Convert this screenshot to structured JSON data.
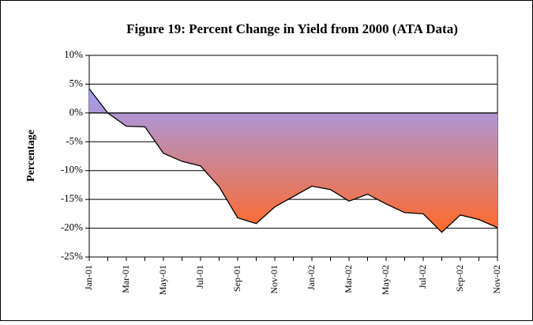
{
  "chart_data": {
    "type": "area",
    "title": "Figure 19:  Percent Change in Yield from 2000 (ATA Data)",
    "y_label": "Percentage",
    "categories": [
      "Jan-01",
      null,
      "Mar-01",
      null,
      "May-01",
      null,
      "Jul-01",
      null,
      "Sep-01",
      null,
      "Nov-01",
      null,
      "Jan-02",
      null,
      "Mar-02",
      null,
      "May-02",
      null,
      "Jul-02",
      null,
      "Sep-02",
      null,
      "Nov-02"
    ],
    "values": [
      4.2,
      0,
      -2.3,
      -2.4,
      -7.0,
      -8.4,
      -9.2,
      -12.8,
      -18.2,
      -19.2,
      -16.3,
      -14.5,
      -12.7,
      -13.3,
      -15.3,
      -14.1,
      -15.8,
      -17.3,
      -17.5,
      -20.7,
      -17.7,
      -18.5,
      -19.9
    ],
    "color": "#9e9ef6",
    "color_end": "#ff6a2a",
    "line_color": "#000000",
    "ylim": [
      -25,
      10
    ],
    "yticks": [
      {
        "value": -25,
        "label": "-25%"
      },
      {
        "value": -20,
        "label": "-20%"
      },
      {
        "value": -15,
        "label": "-15%"
      },
      {
        "value": -10,
        "label": "-10%"
      },
      {
        "value": -5,
        "label": "-5%"
      },
      {
        "value": 0,
        "label": "0%"
      },
      {
        "value": 5,
        "label": "5%"
      },
      {
        "value": 10,
        "label": "10%"
      }
    ],
    "grid": true
  }
}
